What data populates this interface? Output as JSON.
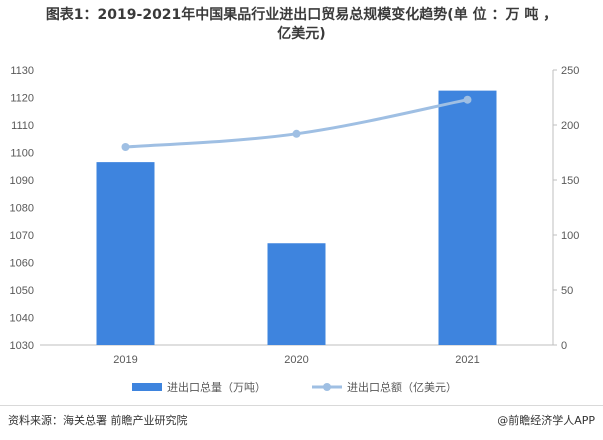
{
  "title": {
    "line1": "图表1：2019-2021年中国果品行业进出口贸易总规模变化趋势(单 位 ：万 吨 ，",
    "line2": "亿美元)"
  },
  "chart_data": {
    "type": "bar",
    "categories": [
      "2019",
      "2020",
      "2021"
    ],
    "series": [
      {
        "name": "进出口总量（万吨）",
        "type": "bar",
        "axis": "left",
        "values": [
          1096.5,
          1067,
          1122.5
        ],
        "color": "#3e84de"
      },
      {
        "name": "进出口总额（亿美元）",
        "type": "line",
        "axis": "right",
        "values": [
          180,
          192,
          223
        ],
        "color": "#9fbfe3"
      }
    ],
    "y_left": {
      "min": 1030,
      "max": 1130,
      "ticks": [
        1030,
        1040,
        1050,
        1060,
        1070,
        1080,
        1090,
        1100,
        1110,
        1120,
        1130
      ]
    },
    "y_right": {
      "min": 0,
      "max": 250,
      "ticks": [
        0,
        50,
        100,
        150,
        200,
        250
      ]
    },
    "legend_position": "bottom",
    "grid": false
  },
  "footer": {
    "source": "资料来源：海关总署 前瞻产业研究院",
    "brand": "@前瞻经济学人APP"
  }
}
